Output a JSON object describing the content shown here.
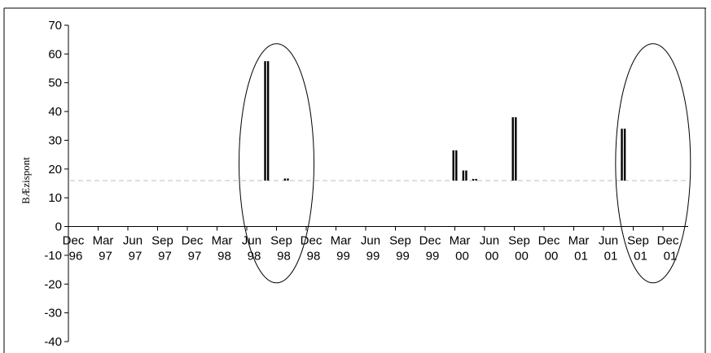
{
  "chart_data": {
    "type": "bar",
    "title": "",
    "xlabel": "",
    "ylabel": "BÆzispont",
    "ylim": [
      -40,
      70
    ],
    "yticks": [
      -40,
      -30,
      -20,
      -10,
      0,
      10,
      20,
      30,
      40,
      50,
      60,
      70
    ],
    "baseline": 16,
    "x_tick_labels": [
      {
        "month": "Dec",
        "year": "96"
      },
      {
        "month": "Mar",
        "year": "97"
      },
      {
        "month": "Jun",
        "year": "97"
      },
      {
        "month": "Sep",
        "year": "97"
      },
      {
        "month": "Dec",
        "year": "97"
      },
      {
        "month": "Mar",
        "year": "98"
      },
      {
        "month": "Jun",
        "year": "98"
      },
      {
        "month": "Sep",
        "year": "98"
      },
      {
        "month": "Dec",
        "year": "98"
      },
      {
        "month": "Mar",
        "year": "99"
      },
      {
        "month": "Jun",
        "year": "99"
      },
      {
        "month": "Sep",
        "year": "99"
      },
      {
        "month": "Dec",
        "year": "99"
      },
      {
        "month": "Mar",
        "year": "00"
      },
      {
        "month": "Jun",
        "year": "00"
      },
      {
        "month": "Sep",
        "year": "00"
      },
      {
        "month": "Dec",
        "year": "00"
      },
      {
        "month": "Mar",
        "year": "01"
      },
      {
        "month": "Jun",
        "year": "01"
      },
      {
        "month": "Sep",
        "year": "01"
      },
      {
        "month": "Dec",
        "year": "01"
      }
    ],
    "bars": [
      {
        "date": "1998-08",
        "value": 57.5
      },
      {
        "date": "1998-10",
        "value": 16.7
      },
      {
        "date": "2000-03",
        "value": 26.5
      },
      {
        "date": "2000-04",
        "value": 19.5
      },
      {
        "date": "2000-05",
        "value": 16.5
      },
      {
        "date": "2000-09",
        "value": 38
      },
      {
        "date": "2001-08",
        "value": 34
      }
    ],
    "highlights": [
      {
        "center": "1998-09"
      },
      {
        "center": "2001-11"
      }
    ],
    "grid": false
  }
}
